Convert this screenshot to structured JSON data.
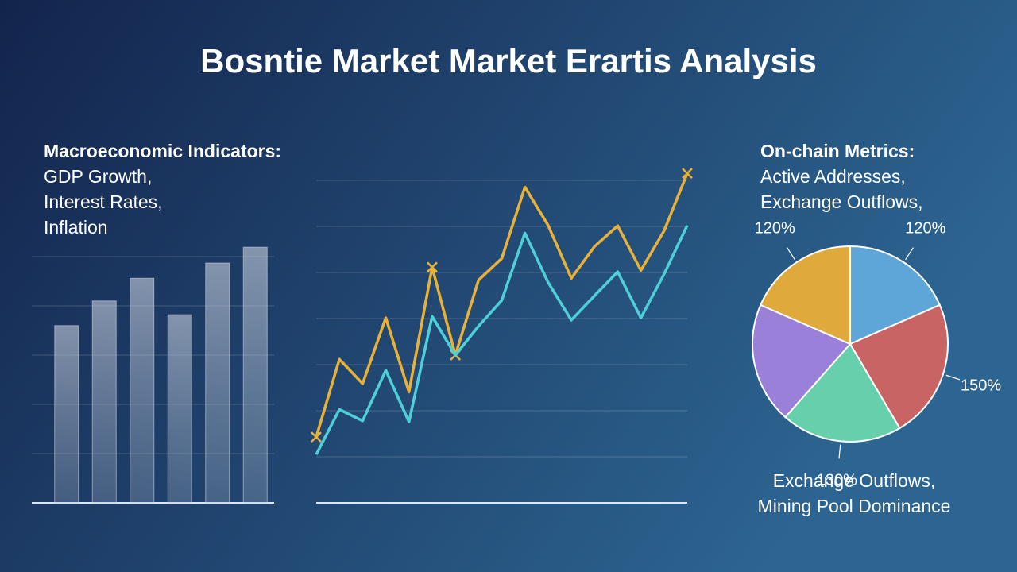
{
  "title": "Bosntie Market Market Erartis Analysis",
  "chart_data": [
    {
      "type": "bar",
      "heading": "Macroeconomic Indicators:",
      "lines": [
        "GDP Growth,",
        "Interest Rates,",
        "Inflation"
      ],
      "categories": [
        null,
        null,
        null,
        null,
        null,
        null
      ],
      "values": [
        3.6,
        4.1,
        4.56,
        3.82,
        4.87,
        5.19
      ],
      "ylim": [
        0,
        5.5
      ],
      "grid": true,
      "color": "#c9d2de"
    },
    {
      "type": "line",
      "categories": [
        null,
        null,
        null,
        null,
        null,
        null,
        null,
        null,
        null,
        null,
        null,
        null,
        null,
        null,
        null,
        null,
        null
      ],
      "series": [
        {
          "color": "#e8b13a",
          "values": [
            1.43,
            3.12,
            2.59,
            4.02,
            2.41,
            5.12,
            3.21,
            4.84,
            5.31,
            6.86,
            6.03,
            4.88,
            5.57,
            6.02,
            5.05,
            5.91,
            7.16
          ]
        },
        {
          "color": "#4fd0d8",
          "values": [
            1.05,
            2.03,
            1.78,
            2.88,
            1.76,
            4.05,
            3.21,
            3.84,
            4.4,
            5.86,
            4.79,
            3.97,
            4.5,
            5.02,
            4.02,
            4.97,
            6.03
          ]
        }
      ],
      "ylim": [
        0,
        7.3
      ],
      "grid": true
    },
    {
      "type": "pie",
      "heading": "On-chain Metrics:",
      "lines": [
        "Active Addresses,",
        "Exchange Outflows,"
      ],
      "footer": [
        "Exchange Outflows,",
        "Mining Pool Dominance"
      ],
      "values": [
        120,
        150,
        130,
        130,
        120
      ],
      "value_labels": [
        "120%",
        "150%",
        "130%",
        null,
        "120%"
      ],
      "colors": [
        "#5fa6d8",
        "#c86464",
        "#66cfac",
        "#9a80d8",
        "#e0a93c"
      ]
    }
  ]
}
